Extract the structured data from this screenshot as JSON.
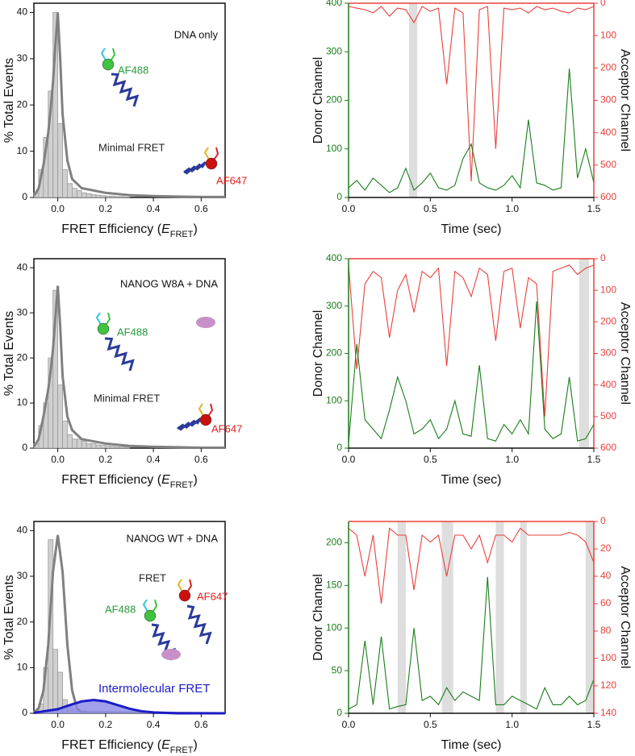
{
  "chart_data": [
    {
      "type": "histogram",
      "title": "DNA only",
      "y_label": "% Total Events",
      "x_label_parts": [
        "FRET Efficiency (",
        "E",
        "FRET",
        ")"
      ],
      "xlim": [
        -0.1,
        0.7
      ],
      "xticks": [
        {
          "value": 0,
          "label": "0.0"
        },
        0.2,
        0.4,
        0.6
      ],
      "ylim": [
        0,
        42
      ],
      "yticks": [
        0,
        10,
        20,
        30,
        40
      ],
      "bins": [
        -0.1,
        -0.08,
        -0.06,
        -0.04,
        -0.02,
        0,
        0.02,
        0.04,
        0.06,
        0.08,
        0.1,
        0.12,
        0.14,
        0.16,
        0.18,
        0.2,
        0.22,
        0.24,
        0.26,
        0.28,
        0.3
      ],
      "counts": [
        1,
        6,
        13,
        23,
        40,
        16,
        6,
        3,
        2,
        1.5,
        1,
        0.8,
        0.6,
        0.5,
        0.4,
        0.3,
        0.3,
        0.2,
        0.2,
        0.1
      ],
      "color": "#d0d0d0",
      "fits": [
        {
          "color": "#808080",
          "x": [
            -0.1,
            -0.08,
            -0.06,
            -0.04,
            -0.03,
            -0.02,
            -0.01,
            0,
            0.01,
            0.02,
            0.04,
            0.06,
            0.1,
            0.2,
            0.3,
            0.4,
            0.5,
            0.6,
            0.7
          ],
          "values": [
            0.3,
            2,
            7,
            14,
            19,
            25,
            33,
            40,
            30,
            18,
            8,
            4,
            2,
            1,
            0.5,
            0.3,
            0.2,
            0.1,
            0.1
          ]
        }
      ],
      "annotations": [
        "AF488",
        "Minimal FRET",
        "AF647"
      ]
    },
    {
      "type": "line",
      "x_label": "Time (sec)",
      "xlim": [
        0,
        1.5
      ],
      "xticks": [
        {
          "value": 0,
          "label": "0.0"
        },
        0.5,
        {
          "value": 1,
          "label": "1.0"
        },
        1.5
      ],
      "ylim": [
        0,
        400
      ],
      "yticks": [
        0,
        100,
        200,
        300,
        400
      ],
      "y2lim": [
        600,
        0
      ],
      "y2ticks": [
        0,
        100,
        200,
        300,
        400,
        500,
        600
      ],
      "x": [
        0,
        0.05,
        0.1,
        0.15,
        0.2,
        0.25,
        0.3,
        0.35,
        0.4,
        0.45,
        0.5,
        0.55,
        0.6,
        0.65,
        0.7,
        0.75,
        0.8,
        0.85,
        0.9,
        0.95,
        1,
        1.05,
        1.1,
        1.15,
        1.2,
        1.25,
        1.3,
        1.35,
        1.4,
        1.45,
        1.5
      ],
      "series": [
        {
          "name": "Donor Channel",
          "color": "#1a7d1a",
          "values": [
            20,
            35,
            15,
            40,
            25,
            10,
            20,
            60,
            15,
            30,
            50,
            20,
            15,
            25,
            80,
            110,
            30,
            20,
            15,
            25,
            45,
            20,
            160,
            30,
            25,
            15,
            20,
            265,
            40,
            100,
            30
          ]
        },
        {
          "name": "Acceptor Channel",
          "color": "#e8413c",
          "axis": "y2",
          "values": [
            10,
            15,
            20,
            30,
            10,
            40,
            15,
            20,
            60,
            10,
            25,
            15,
            250,
            15,
            30,
            550,
            20,
            10,
            450,
            15,
            20,
            15,
            30,
            10,
            20,
            15,
            25,
            30,
            15,
            20,
            10
          ]
        }
      ],
      "highlights": [
        [
          0.37,
          0.42
        ]
      ]
    },
    {
      "type": "histogram",
      "title": "NANOG W8A + DNA",
      "y_label": "% Total Events",
      "x_label_parts": [
        "FRET Efficiency (",
        "E",
        "FRET",
        ")"
      ],
      "xlim": [
        -0.1,
        0.7
      ],
      "xticks": [
        {
          "value": 0,
          "label": "0.0"
        },
        0.2,
        0.4,
        0.6
      ],
      "ylim": [
        0,
        42
      ],
      "yticks": [
        0,
        10,
        20,
        30,
        40
      ],
      "bins": [
        -0.1,
        -0.08,
        -0.06,
        -0.04,
        -0.02,
        0,
        0.02,
        0.04,
        0.06,
        0.08,
        0.1,
        0.12,
        0.14,
        0.16,
        0.18,
        0.2,
        0.22,
        0.24,
        0.26,
        0.28,
        0.3
      ],
      "counts": [
        1,
        5,
        10,
        20,
        35,
        14,
        6,
        3,
        2,
        2,
        1.5,
        1,
        1,
        0.7,
        0.6,
        0.5,
        0.4,
        0.3,
        0.3,
        0.2
      ],
      "color": "#d0d0d0",
      "fits": [
        {
          "color": "#808080",
          "x": [
            -0.1,
            -0.08,
            -0.06,
            -0.04,
            -0.03,
            -0.02,
            -0.01,
            0,
            0.01,
            0.02,
            0.04,
            0.06,
            0.1,
            0.2,
            0.3,
            0.4,
            0.5,
            0.6,
            0.7
          ],
          "values": [
            0.3,
            2,
            7,
            13,
            17,
            22,
            29,
            36,
            27,
            16,
            7,
            4,
            2,
            1,
            0.5,
            0.3,
            0.2,
            0.1,
            0.1
          ]
        }
      ],
      "annotations": [
        "AF488",
        "Minimal FRET",
        "AF647"
      ]
    },
    {
      "type": "line",
      "x_label": "Time (sec)",
      "xlim": [
        0,
        1.5
      ],
      "xticks": [
        {
          "value": 0,
          "label": "0.0"
        },
        0.5,
        {
          "value": 1,
          "label": "1.0"
        },
        1.5
      ],
      "ylim": [
        0,
        400
      ],
      "yticks": [
        0,
        100,
        200,
        300,
        400
      ],
      "y2lim": [
        600,
        0
      ],
      "y2ticks": [
        0,
        100,
        200,
        300,
        400,
        500,
        600
      ],
      "x": [
        0,
        0.05,
        0.1,
        0.15,
        0.2,
        0.25,
        0.3,
        0.35,
        0.4,
        0.45,
        0.5,
        0.55,
        0.6,
        0.65,
        0.7,
        0.75,
        0.8,
        0.85,
        0.9,
        0.95,
        1,
        1.05,
        1.1,
        1.15,
        1.2,
        1.25,
        1.3,
        1.35,
        1.4,
        1.45,
        1.5
      ],
      "series": [
        {
          "name": "Donor Channel",
          "color": "#1a7d1a",
          "values": [
            10,
            220,
            60,
            40,
            20,
            80,
            150,
            100,
            30,
            40,
            60,
            20,
            40,
            100,
            30,
            25,
            175,
            20,
            15,
            50,
            30,
            60,
            30,
            310,
            40,
            20,
            30,
            150,
            15,
            20,
            50
          ]
        },
        {
          "name": "Acceptor Channel",
          "color": "#e8413c",
          "axis": "y2",
          "values": [
            20,
            350,
            80,
            40,
            60,
            250,
            100,
            50,
            170,
            40,
            60,
            30,
            340,
            40,
            60,
            120,
            30,
            50,
            260,
            40,
            30,
            220,
            60,
            80,
            500,
            40,
            30,
            20,
            50,
            30,
            20
          ]
        }
      ],
      "highlights": [
        [
          1.41,
          1.47
        ]
      ]
    },
    {
      "type": "histogram",
      "title": "NANOG WT + DNA",
      "y_label": "% Total Events",
      "x_label_parts": [
        "FRET Efficiency (",
        "E",
        "FRET",
        ")"
      ],
      "xlim": [
        -0.1,
        0.7
      ],
      "xticks": [
        {
          "value": 0,
          "label": "0.0"
        },
        0.2,
        0.4,
        0.6
      ],
      "ylim": [
        0,
        42
      ],
      "yticks": [
        0,
        10,
        20,
        30,
        40
      ],
      "bins": [
        -0.1,
        -0.08,
        -0.06,
        -0.04,
        -0.02,
        0,
        0.02,
        0.04,
        0.06,
        0.08,
        0.1,
        0.12,
        0.14,
        0.16,
        0.18,
        0.2
      ],
      "counts": [
        0.5,
        2,
        10,
        38,
        14,
        9,
        3,
        1.5,
        1,
        0.5,
        0.5,
        0.3,
        0.3,
        0.2,
        0.2
      ],
      "color": "#d0d0d0",
      "fits": [
        {
          "color": "#808080",
          "x": [
            -0.1,
            -0.08,
            -0.06,
            -0.04,
            -0.02,
            0,
            0.02,
            0.04,
            0.06,
            0.08,
            0.1,
            0.7
          ],
          "values": [
            0.2,
            1.1,
            5,
            15,
            31,
            39,
            31,
            15,
            5,
            1.1,
            0.2,
            0
          ]
        },
        {
          "name": "Intermolecular FRET",
          "color": "#1c1cc8",
          "fill": "#8a8ae6",
          "x": [
            -0.1,
            0,
            0.05,
            0.1,
            0.15,
            0.2,
            0.25,
            0.3,
            0.35,
            0.4,
            0.5,
            0.6,
            0.7
          ],
          "values": [
            0.1,
            0.9,
            1.8,
            2.6,
            2.9,
            2.6,
            1.8,
            1,
            0.45,
            0.2,
            0,
            0,
            0
          ]
        }
      ],
      "annotations": [
        "FRET",
        "AF647",
        "AF488"
      ]
    },
    {
      "type": "line",
      "x_label": "Time (sec)",
      "xlim": [
        0,
        1.5
      ],
      "xticks": [
        {
          "value": 0,
          "label": "0.0"
        },
        0.5,
        {
          "value": 1,
          "label": "1.0"
        },
        1.5
      ],
      "ylim": [
        0,
        225
      ],
      "yticks": [
        0,
        50,
        100,
        150,
        200
      ],
      "y2lim": [
        140,
        0
      ],
      "y2ticks": [
        0,
        20,
        40,
        60,
        80,
        100,
        120,
        140
      ],
      "x": [
        0,
        0.05,
        0.1,
        0.15,
        0.2,
        0.25,
        0.3,
        0.35,
        0.4,
        0.45,
        0.5,
        0.55,
        0.6,
        0.65,
        0.7,
        0.75,
        0.8,
        0.85,
        0.9,
        0.95,
        1,
        1.05,
        1.1,
        1.15,
        1.2,
        1.25,
        1.3,
        1.35,
        1.4,
        1.45,
        1.5
      ],
      "series": [
        {
          "name": "Donor Channel",
          "color": "#1a7d1a",
          "values": [
            5,
            10,
            85,
            10,
            90,
            5,
            8,
            10,
            100,
            15,
            20,
            10,
            30,
            15,
            25,
            20,
            15,
            160,
            10,
            10,
            20,
            15,
            10,
            5,
            30,
            10,
            10,
            20,
            10,
            15,
            40
          ]
        },
        {
          "name": "Acceptor Channel",
          "color": "#e8413c",
          "axis": "y2",
          "values": [
            5,
            10,
            40,
            10,
            60,
            5,
            10,
            10,
            50,
            10,
            15,
            10,
            40,
            10,
            10,
            20,
            10,
            30,
            10,
            10,
            15,
            5,
            10,
            10,
            10,
            10,
            10,
            8,
            10,
            15,
            30
          ]
        }
      ],
      "highlights": [
        [
          0.3,
          0.35
        ],
        [
          0.57,
          0.64
        ],
        [
          0.9,
          0.95
        ],
        [
          1.05,
          1.09
        ],
        [
          1.45,
          1.5
        ]
      ]
    }
  ]
}
